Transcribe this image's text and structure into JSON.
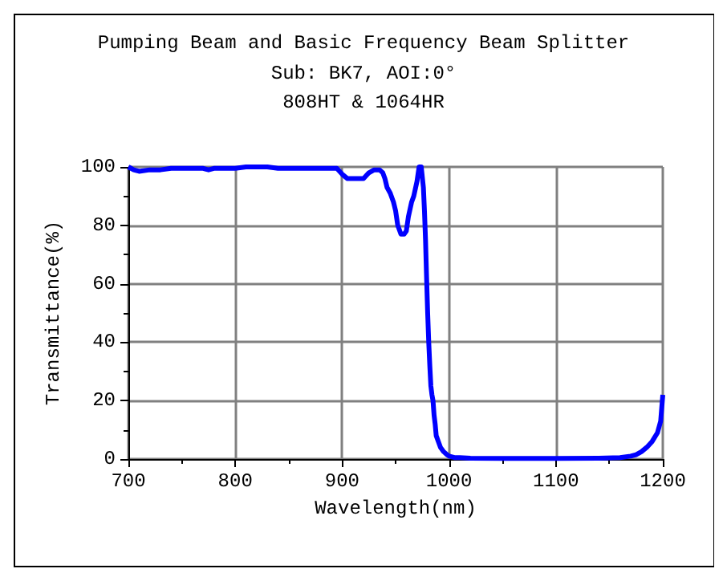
{
  "chart_data": {
    "type": "line",
    "title": "Pumping Beam and Basic Frequency Beam Splitter",
    "subtitle": "Sub: BK7, AOI:0°\n808HT & 1064HR",
    "xlabel": "Wavelength(nm)",
    "ylabel": "Transmittance(%)",
    "xlim": [
      700,
      1200
    ],
    "ylim": [
      0,
      100
    ],
    "xticks": [
      700,
      800,
      900,
      1000,
      1100,
      1200
    ],
    "yticks": [
      0,
      20,
      40,
      60,
      80,
      100
    ],
    "grid": true,
    "marker": "none",
    "line_style": "solid",
    "series": [
      {
        "color": "#0000ff",
        "x": [
          700,
          705,
          710,
          720,
          730,
          740,
          750,
          760,
          770,
          775,
          780,
          790,
          800,
          810,
          820,
          830,
          840,
          850,
          860,
          870,
          880,
          890,
          895,
          900,
          905,
          910,
          915,
          920,
          925,
          930,
          935,
          938,
          940,
          942,
          945,
          948,
          950,
          952,
          955,
          958,
          960,
          962,
          965,
          967,
          970,
          972,
          974,
          976,
          977,
          978,
          979,
          980,
          981,
          982,
          983,
          984,
          985,
          986,
          987,
          988,
          990,
          992,
          995,
          998,
          1000,
          1005,
          1010,
          1020,
          1050,
          1100,
          1140,
          1160,
          1170,
          1175,
          1180,
          1185,
          1190,
          1195,
          1198,
          1200
        ],
        "values": [
          100,
          99,
          98.5,
          99,
          99,
          99.5,
          99.5,
          99.5,
          99.5,
          99,
          99.5,
          99.5,
          99.5,
          100,
          100,
          100,
          99.5,
          99.5,
          99.5,
          99.5,
          99.5,
          99.5,
          99.5,
          97.5,
          96,
          96,
          96,
          96,
          98,
          99,
          99,
          98,
          96,
          93,
          91,
          88,
          85,
          80,
          77,
          77,
          78,
          83,
          88,
          90,
          95,
          100,
          100,
          93,
          85,
          75,
          62,
          50,
          40,
          32,
          25,
          22,
          20,
          15,
          12,
          8,
          6,
          4,
          2.5,
          1.5,
          1,
          0.5,
          0.5,
          0.3,
          0.2,
          0.2,
          0.3,
          0.5,
          1,
          1.5,
          2.5,
          4,
          6,
          9,
          13,
          22
        ]
      }
    ]
  }
}
